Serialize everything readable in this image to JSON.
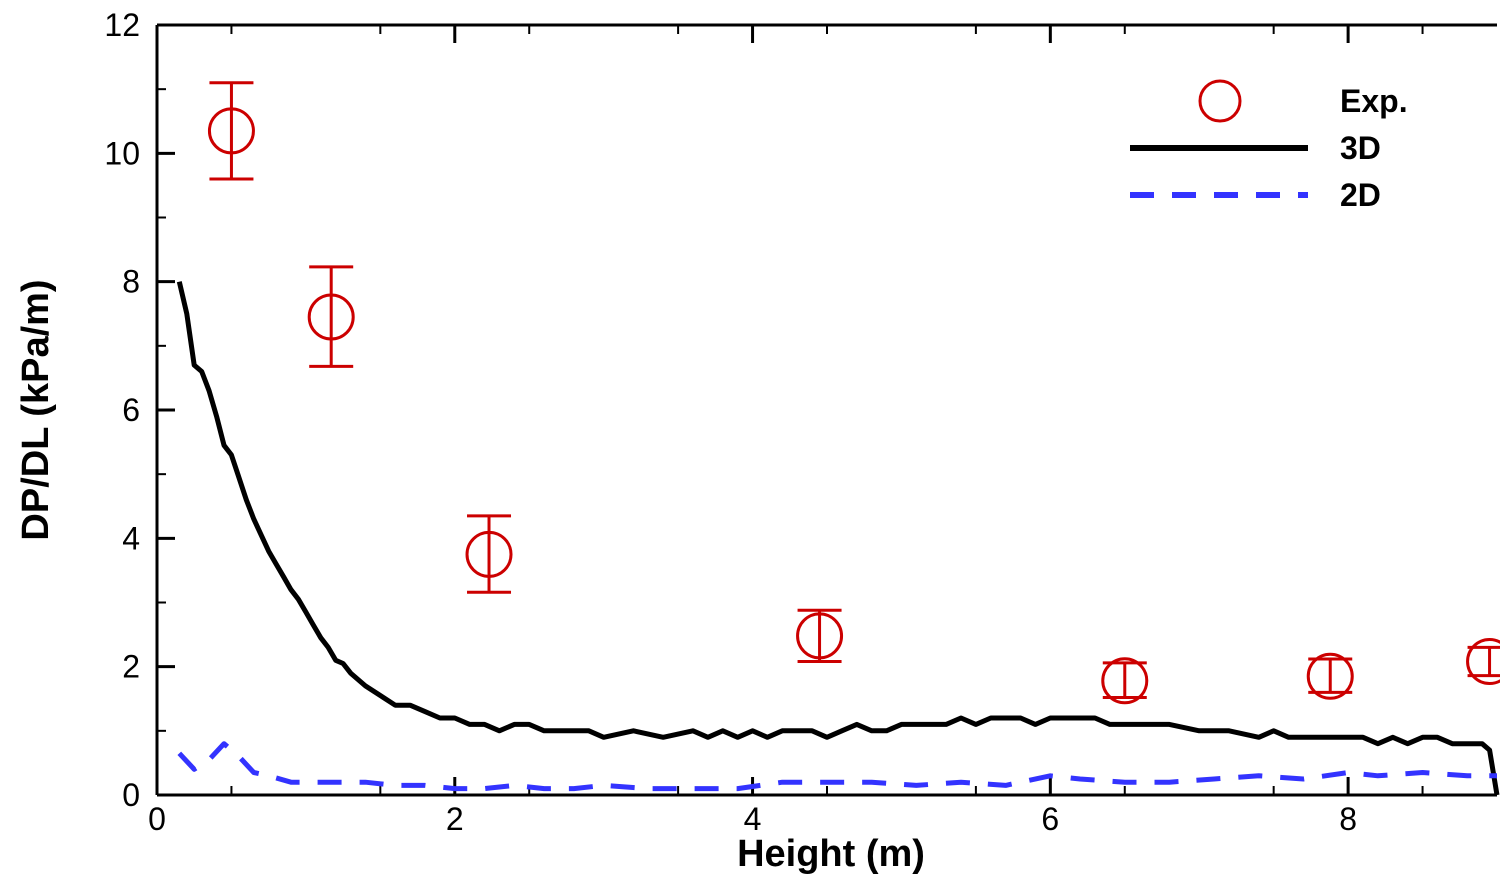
{
  "chart_data": {
    "type": "scatter",
    "xlabel": "Height (m)",
    "ylabel": "DP/DL (kPa/m)",
    "xlim": [
      0,
      9
    ],
    "ylim": [
      0,
      12
    ],
    "xticks": [
      0,
      2,
      4,
      6,
      8
    ],
    "yticks": [
      0,
      2,
      4,
      6,
      8,
      10,
      12
    ],
    "grid": false,
    "legend_position": "top-right",
    "series": [
      {
        "name": "Exp.",
        "kind": "markers-with-error-bars",
        "marker": "open-circle",
        "color": "#cc0000",
        "x": [
          0.5,
          1.17,
          2.23,
          4.45,
          6.5,
          7.88,
          8.95
        ],
        "y": [
          10.35,
          7.45,
          3.75,
          2.48,
          1.78,
          1.85,
          2.08
        ],
        "y_low": [
          9.6,
          6.68,
          3.16,
          2.08,
          1.52,
          1.6,
          1.86
        ],
        "y_high": [
          11.1,
          8.23,
          4.35,
          2.88,
          2.06,
          2.12,
          2.3
        ]
      },
      {
        "name": "3D",
        "kind": "line",
        "style": "solid",
        "color": "#000000",
        "x": [
          0.15,
          0.2,
          0.25,
          0.3,
          0.35,
          0.4,
          0.45,
          0.5,
          0.55,
          0.6,
          0.65,
          0.7,
          0.75,
          0.8,
          0.85,
          0.9,
          0.95,
          1.0,
          1.05,
          1.1,
          1.15,
          1.2,
          1.25,
          1.3,
          1.35,
          1.4,
          1.5,
          1.6,
          1.7,
          1.8,
          1.9,
          2.0,
          2.1,
          2.2,
          2.3,
          2.4,
          2.5,
          2.6,
          2.7,
          2.8,
          2.9,
          3.0,
          3.2,
          3.4,
          3.6,
          3.7,
          3.8,
          3.9,
          4.0,
          4.1,
          4.2,
          4.3,
          4.4,
          4.5,
          4.6,
          4.7,
          4.8,
          4.9,
          5.0,
          5.1,
          5.2,
          5.3,
          5.4,
          5.5,
          5.6,
          5.8,
          5.9,
          6.0,
          6.1,
          6.2,
          6.3,
          6.4,
          6.5,
          6.6,
          6.8,
          7.0,
          7.2,
          7.4,
          7.5,
          7.6,
          7.8,
          8.0,
          8.1,
          8.2,
          8.3,
          8.4,
          8.5,
          8.6,
          8.7,
          8.8,
          8.9,
          8.95,
          9.0
        ],
        "y": [
          8.0,
          7.5,
          6.7,
          6.6,
          6.3,
          5.9,
          5.45,
          5.3,
          4.95,
          4.6,
          4.3,
          4.05,
          3.8,
          3.6,
          3.4,
          3.2,
          3.05,
          2.85,
          2.65,
          2.45,
          2.3,
          2.1,
          2.05,
          1.9,
          1.8,
          1.7,
          1.55,
          1.4,
          1.4,
          1.3,
          1.2,
          1.2,
          1.1,
          1.1,
          1.0,
          1.1,
          1.1,
          1.0,
          1.0,
          1.0,
          1.0,
          0.9,
          1.0,
          0.9,
          1.0,
          0.9,
          1.0,
          0.9,
          1.0,
          0.9,
          1.0,
          1.0,
          1.0,
          0.9,
          1.0,
          1.1,
          1.0,
          1.0,
          1.1,
          1.1,
          1.1,
          1.1,
          1.2,
          1.1,
          1.2,
          1.2,
          1.1,
          1.2,
          1.2,
          1.2,
          1.2,
          1.1,
          1.1,
          1.1,
          1.1,
          1.0,
          1.0,
          0.9,
          1.0,
          0.9,
          0.9,
          0.9,
          0.9,
          0.8,
          0.9,
          0.8,
          0.9,
          0.9,
          0.8,
          0.8,
          0.8,
          0.7,
          0.0
        ]
      },
      {
        "name": "2D",
        "kind": "line",
        "style": "dashed",
        "color": "#3333ff",
        "x": [
          0.15,
          0.25,
          0.35,
          0.45,
          0.55,
          0.65,
          0.75,
          0.9,
          1.0,
          1.2,
          1.4,
          1.6,
          1.8,
          2.0,
          2.2,
          2.4,
          2.6,
          2.8,
          3.0,
          3.3,
          3.6,
          3.9,
          4.2,
          4.5,
          4.8,
          5.1,
          5.4,
          5.7,
          6.0,
          6.2,
          6.5,
          6.8,
          7.1,
          7.4,
          7.7,
          8.0,
          8.2,
          8.5,
          8.8,
          9.0
        ],
        "y": [
          0.65,
          0.4,
          0.55,
          0.8,
          0.6,
          0.35,
          0.3,
          0.2,
          0.2,
          0.2,
          0.2,
          0.15,
          0.15,
          0.1,
          0.1,
          0.15,
          0.1,
          0.1,
          0.15,
          0.1,
          0.1,
          0.1,
          0.2,
          0.2,
          0.2,
          0.15,
          0.2,
          0.15,
          0.3,
          0.25,
          0.2,
          0.2,
          0.25,
          0.3,
          0.25,
          0.35,
          0.3,
          0.35,
          0.3,
          0.3
        ]
      }
    ]
  }
}
